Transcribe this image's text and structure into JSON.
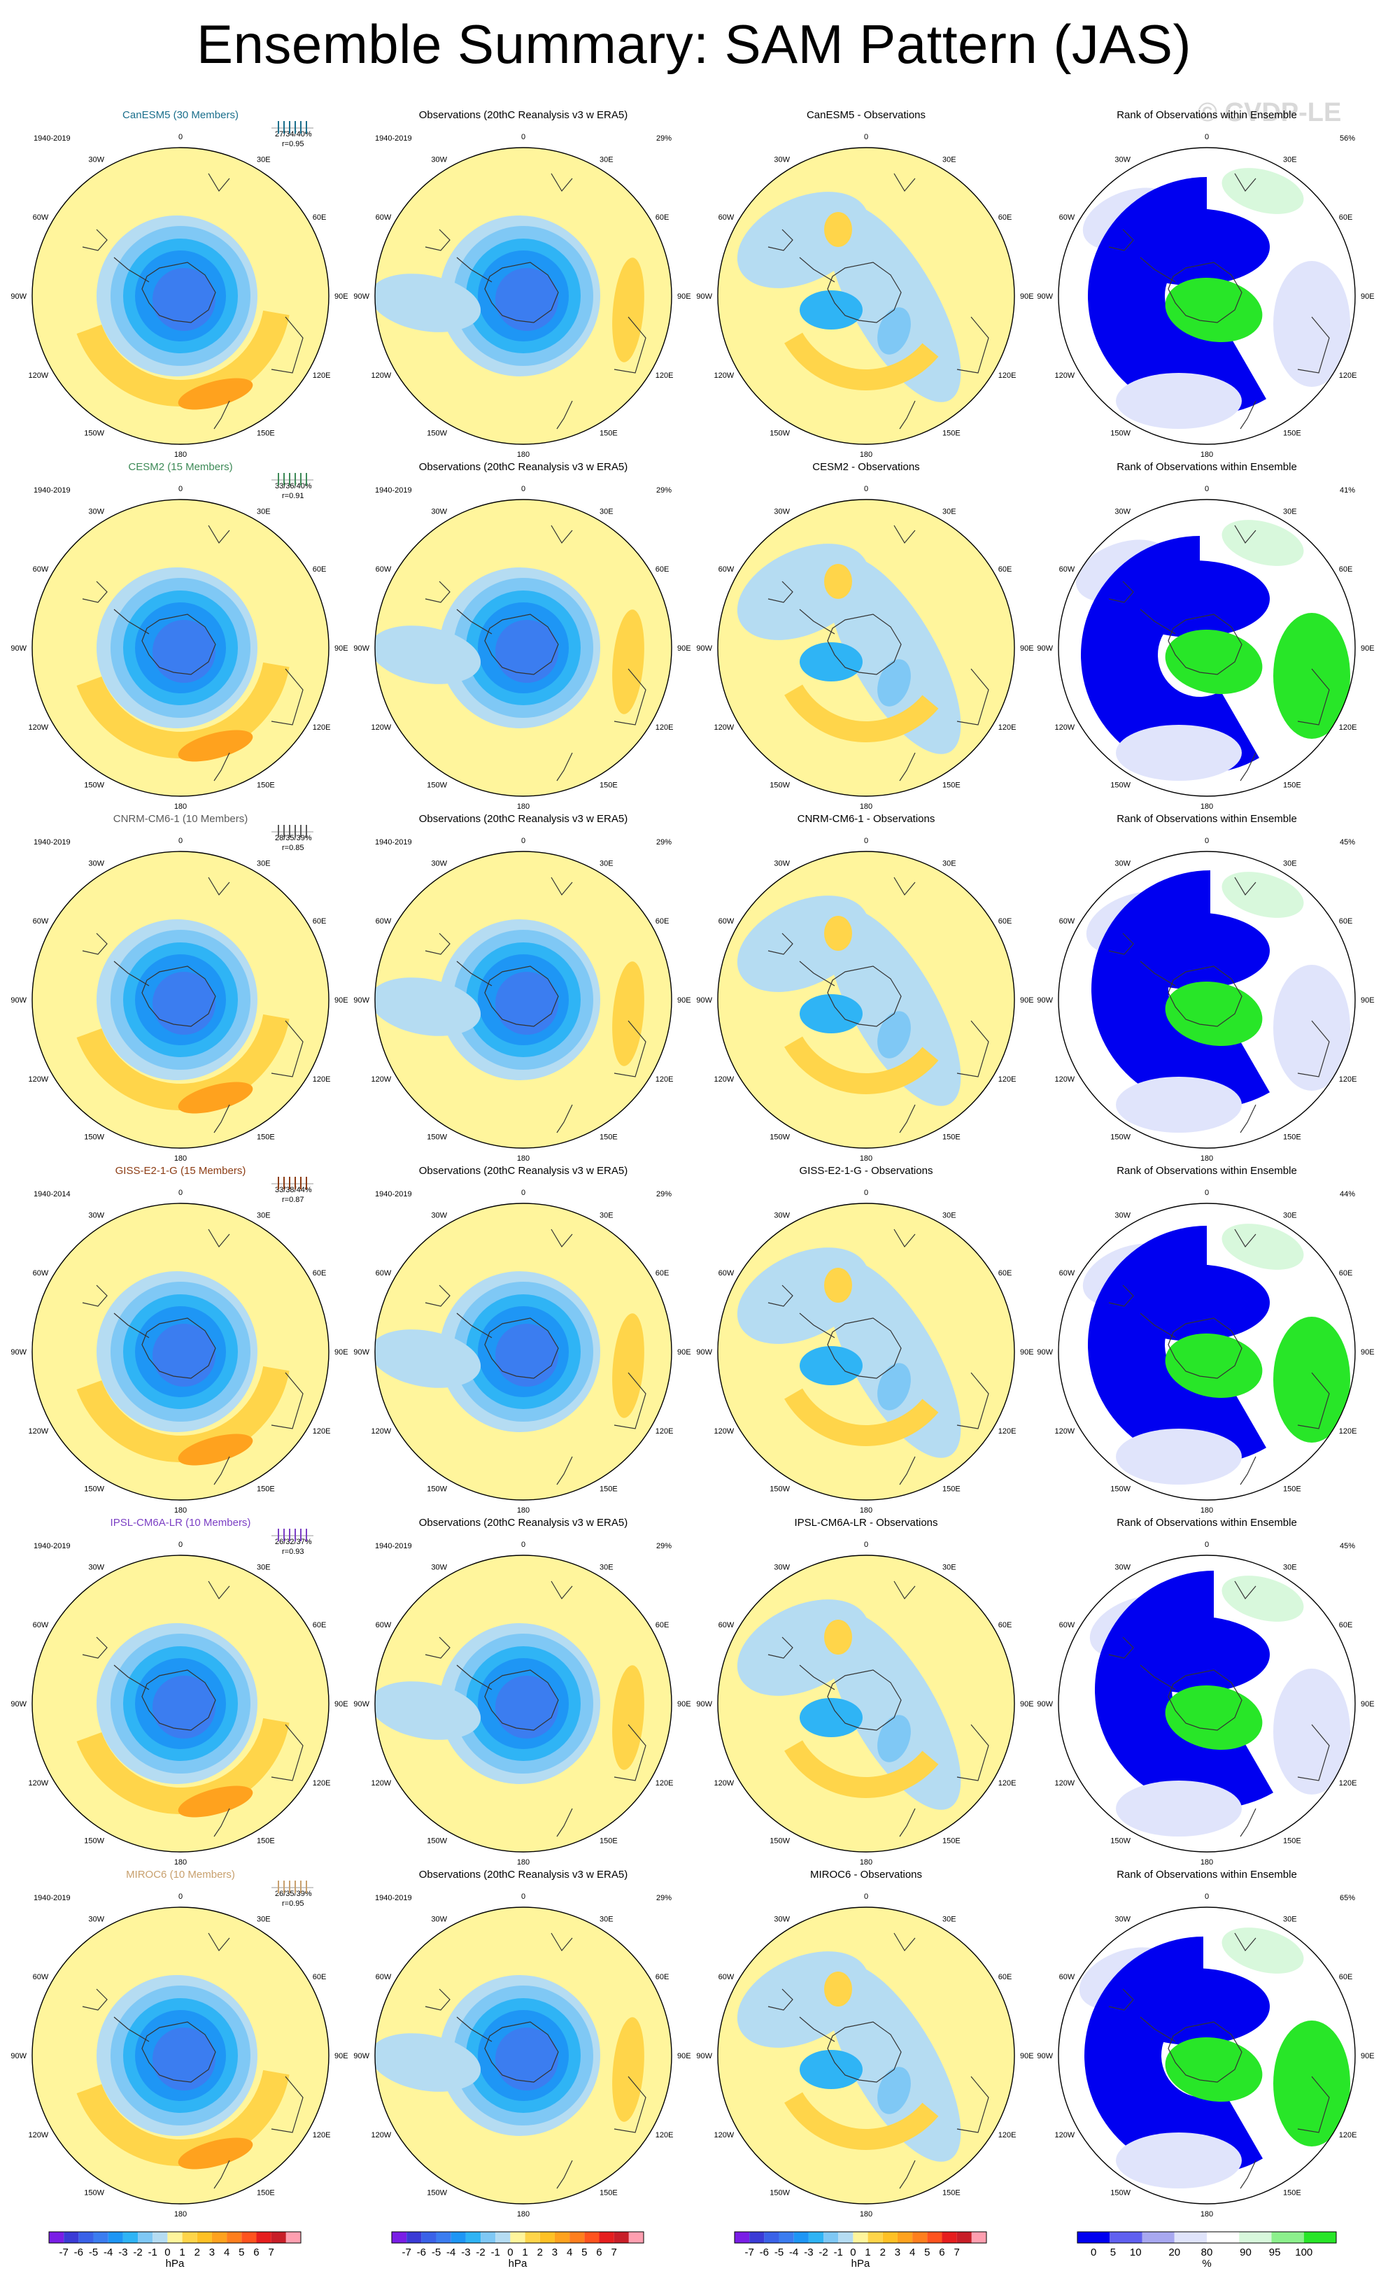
{
  "title": "Ensemble Summary: SAM Pattern (JAS)",
  "watermark": "© CVDP-LE",
  "obs_title": "Observations (20thC Reanalysis v3 w ERA5)",
  "rank_title": "Rank of Observations within Ensemble",
  "lon_labels": [
    "0",
    "30E",
    "60E",
    "90E",
    "120E",
    "150E",
    "180",
    "150W",
    "120W",
    "90W",
    "60W",
    "30W"
  ],
  "units": {
    "hpa": "hPa",
    "pct": "%"
  },
  "colorbar_hpa": {
    "labels": [
      "-7",
      "-6",
      "-5",
      "-4",
      "-3",
      "-2",
      "-1",
      "0",
      "1",
      "2",
      "3",
      "4",
      "5",
      "6",
      "7"
    ],
    "colors": [
      "#7a1ee6",
      "#3b3bd6",
      "#3a62e8",
      "#3b7df0",
      "#1e96f5",
      "#2fb4f5",
      "#7fc8f5",
      "#b5dcf2",
      "#fff59c",
      "#ffd54a",
      "#ffc125",
      "#ffa21e",
      "#ff7f1e",
      "#ff531e",
      "#e61e1e",
      "#c81e28",
      "#ff9fb0"
    ]
  },
  "colorbar_pct": {
    "labels": [
      "0",
      "5",
      "10",
      "20",
      "80",
      "90",
      "95",
      "100"
    ],
    "colors": [
      "#0000f0",
      "#6060f0",
      "#a8a8f0",
      "#e0e4fb",
      "#ffffff",
      "#d8f8dc",
      "#8cf08c",
      "#28e628"
    ]
  },
  "rows": [
    {
      "model": "CanESM5 (30 Members)",
      "color": "#1b6f8c",
      "years": "1940-2019",
      "stats": "27/34/40%",
      "r": "r=0.95",
      "diff_title": "CanESM5 - Observations",
      "obs_years": "1940-2019",
      "obs_pct": "29%",
      "rank_pct": "56%"
    },
    {
      "model": "CESM2 (15 Members)",
      "color": "#3d8a57",
      "years": "1940-2019",
      "stats": "33/36/40%",
      "r": "r=0.91",
      "diff_title": "CESM2 - Observations",
      "obs_years": "1940-2019",
      "obs_pct": "29%",
      "rank_pct": "41%"
    },
    {
      "model": "CNRM-CM6-1 (10 Members)",
      "color": "#5b5b5b",
      "years": "1940-2019",
      "stats": "28/35/39%",
      "r": "r=0.85",
      "diff_title": "CNRM-CM6-1 - Observations",
      "obs_years": "1940-2019",
      "obs_pct": "29%",
      "rank_pct": "45%"
    },
    {
      "model": "GISS-E2-1-G (15 Members)",
      "color": "#8c3c14",
      "years": "1940-2014",
      "stats": "33/38/44%",
      "r": "r=0.87",
      "diff_title": "GISS-E2-1-G - Observations",
      "obs_years": "1940-2019",
      "obs_pct": "29%",
      "rank_pct": "44%"
    },
    {
      "model": "IPSL-CM6A-LR (10 Members)",
      "color": "#7b3fc4",
      "years": "1940-2019",
      "stats": "26/32/37%",
      "r": "r=0.93",
      "diff_title": "IPSL-CM6A-LR - Observations",
      "obs_years": "1940-2019",
      "obs_pct": "29%",
      "rank_pct": "45%"
    },
    {
      "model": "MIROC6 (10 Members)",
      "color": "#c8a06e",
      "years": "1940-2019",
      "stats": "26/35/39%",
      "r": "r=0.95",
      "diff_title": "MIROC6 - Observations",
      "obs_years": "1940-2019",
      "obs_pct": "29%",
      "rank_pct": "65%"
    }
  ],
  "map_colors": {
    "yellow": "#fff59c",
    "light_blue": "#b5dcf2",
    "blue1": "#7fc8f5",
    "blue2": "#2fb4f5",
    "blue3": "#1e96f5",
    "blue4": "#3b7df0",
    "orange1": "#ffd54a",
    "orange2": "#ffa21e",
    "rank_blue": "#0000f0",
    "rank_lightblue": "#e0e4fb",
    "rank_green": "#28e628",
    "rank_lightgreen": "#d8f8dc"
  }
}
